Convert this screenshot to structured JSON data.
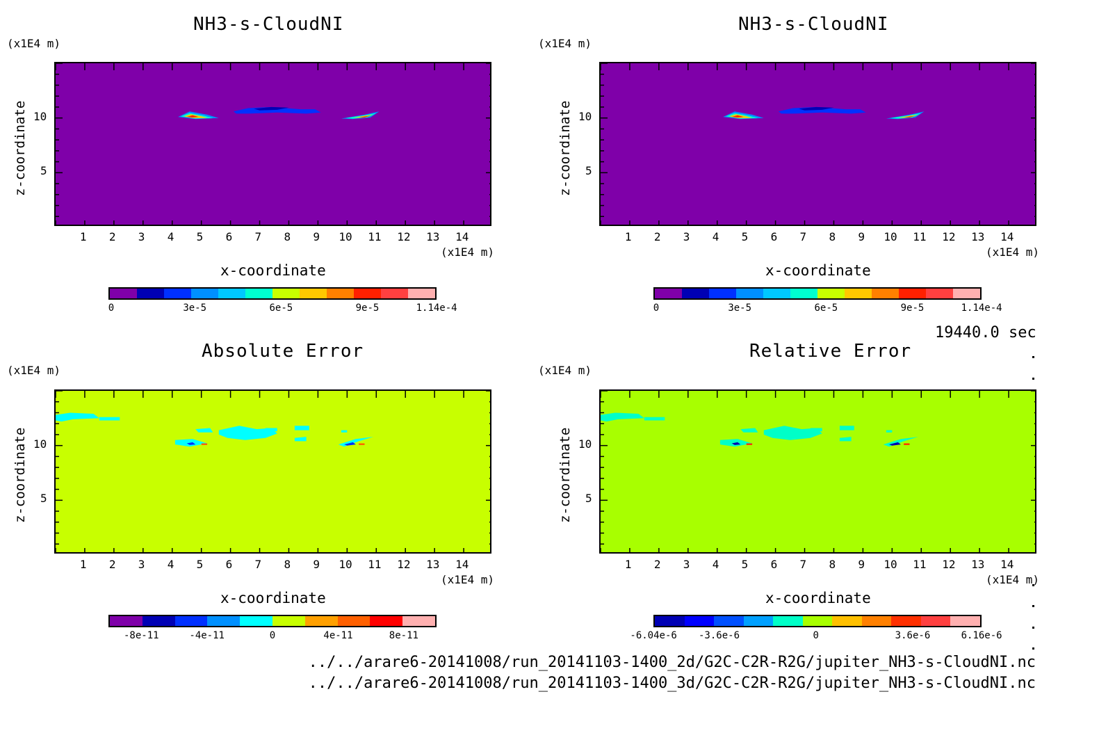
{
  "chart_data": [
    {
      "type": "heatmap",
      "title": "NH3-s-CloudNI",
      "xlabel": "x-coordinate",
      "ylabel": "z-coordinate",
      "x_unit": "(x1E4 m)",
      "y_unit": "(x1E4 m)",
      "x_ticks": [
        "1",
        "2",
        "3",
        "4",
        "5",
        "6",
        "7",
        "8",
        "9",
        "10",
        "11",
        "12",
        "13",
        "14"
      ],
      "y_ticks": [
        "5",
        "10"
      ],
      "xlim": [
        0,
        15
      ],
      "ylim": [
        0,
        15
      ],
      "colorbar_ticks": [
        "0",
        "3e-5",
        "6e-5",
        "9e-5",
        "1.14e-4"
      ],
      "background_color": "#7f00a9"
    },
    {
      "type": "heatmap",
      "title": "NH3-s-CloudNI",
      "xlabel": "x-coordinate",
      "ylabel": "z-coordinate",
      "x_unit": "(x1E4 m)",
      "y_unit": "(x1E4 m)",
      "x_ticks": [
        "1",
        "2",
        "3",
        "4",
        "5",
        "6",
        "7",
        "8",
        "9",
        "10",
        "11",
        "12",
        "13",
        "14"
      ],
      "y_ticks": [
        "5",
        "10"
      ],
      "xlim": [
        0,
        15
      ],
      "ylim": [
        0,
        15
      ],
      "colorbar_ticks": [
        "0",
        "3e-5",
        "6e-5",
        "9e-5",
        "1.14e-4"
      ],
      "background_color": "#7f00a9"
    },
    {
      "type": "heatmap",
      "title": "Absolute Error",
      "xlabel": "x-coordinate",
      "ylabel": "z-coordinate",
      "x_unit": "(x1E4 m)",
      "y_unit": "(x1E4 m)",
      "x_ticks": [
        "1",
        "2",
        "3",
        "4",
        "5",
        "6",
        "7",
        "8",
        "9",
        "10",
        "11",
        "12",
        "13",
        "14"
      ],
      "y_ticks": [
        "5",
        "10"
      ],
      "xlim": [
        0,
        15
      ],
      "ylim": [
        0,
        15
      ],
      "colorbar_ticks": [
        "-8e-11",
        "-4e-11",
        "0",
        "4e-11",
        "8e-11"
      ],
      "background_color": "#c8ff00"
    },
    {
      "type": "heatmap",
      "title": "Relative Error",
      "xlabel": "x-coordinate",
      "ylabel": "z-coordinate",
      "x_unit": "(x1E4 m)",
      "y_unit": "(x1E4 m)",
      "x_ticks": [
        "1",
        "2",
        "3",
        "4",
        "5",
        "6",
        "7",
        "8",
        "9",
        "10",
        "11",
        "12",
        "13",
        "14"
      ],
      "y_ticks": [
        "5",
        "10"
      ],
      "xlim": [
        0,
        15
      ],
      "ylim": [
        0,
        15
      ],
      "colorbar_ticks": [
        "-6.04e-6",
        "-3.6e-6",
        "0",
        "3.6e-6",
        "6.16e-6"
      ],
      "background_color": "#a8ff00"
    }
  ],
  "time_label": "19440.0 sec",
  "footer": {
    "line1": "../../arare6-20141008/run_20141103-1400_2d/G2C-C2R-R2G/jupiter_NH3-s-CloudNI.nc",
    "line2": "../../arare6-20141008/run_20141103-1400_3d/G2C-C2R-R2G/jupiter_NH3-s-CloudNI.nc"
  },
  "colorbars": {
    "top": [
      "#7f00a9",
      "#0000b4",
      "#0030ff",
      "#0090ff",
      "#00c8ff",
      "#00ffd0",
      "#c8ff00",
      "#ffc800",
      "#ff8000",
      "#ff2000",
      "#ff4040",
      "#ffb0b0"
    ],
    "abs": [
      "#7f00a9",
      "#0000b4",
      "#0030ff",
      "#0090ff",
      "#00ffff",
      "#c8ff00",
      "#ffa000",
      "#ff6000",
      "#ff0000",
      "#ffb0b0"
    ],
    "rel": [
      "#0000b4",
      "#0000ff",
      "#0050ff",
      "#00a0ff",
      "#00ffc8",
      "#a8ff00",
      "#ffc000",
      "#ff8000",
      "#ff3000",
      "#ff4040",
      "#ffb0b0"
    ]
  }
}
